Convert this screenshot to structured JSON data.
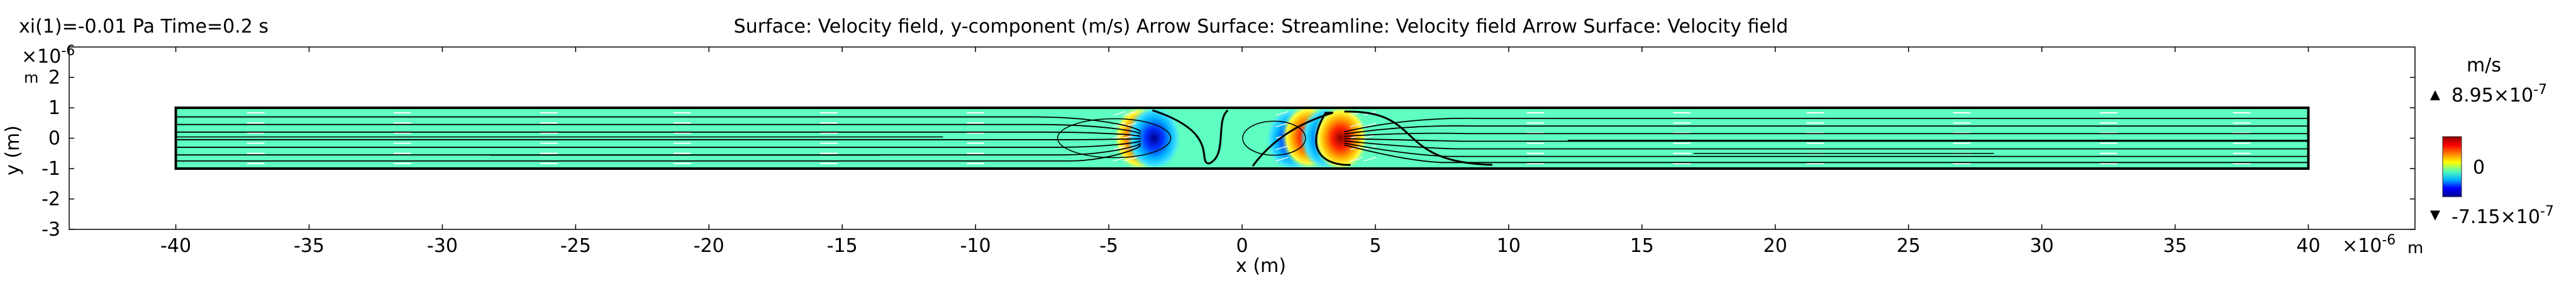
{
  "header": {
    "left_text": "xi(1)=-0.01 Pa Time=0.2 s",
    "title_text": "Surface: Velocity field, y-component (m/s)  Arrow Surface:   Streamline: Velocity field  Arrow Surface: Velocity field"
  },
  "chart_data": {
    "type": "heatmap",
    "title": "Surface: Velocity field, y-component (m/s)  Arrow Surface:   Streamline: Velocity field  Arrow Surface: Velocity field",
    "parameter_label": "xi(1)=-0.01 Pa Time=0.2 s",
    "xlabel": "x (m)",
    "ylabel": "y (m)",
    "x_scale_text": "×10",
    "x_scale_exp": "-6",
    "x_unit": "m",
    "y_scale_text": "×10",
    "y_scale_exp": "-6",
    "y_unit": "m",
    "xlim": [
      -44,
      44
    ],
    "ylim": [
      -3,
      3
    ],
    "x_ticks": [
      -40,
      -35,
      -30,
      -25,
      -20,
      -15,
      -10,
      -5,
      0,
      5,
      10,
      15,
      20,
      25,
      30,
      35,
      40
    ],
    "y_ticks": [
      -3,
      -2,
      -1,
      0,
      1,
      2
    ],
    "domain": {
      "x": [
        -40,
        40
      ],
      "y": [
        -1,
        1
      ]
    },
    "colorbar": {
      "unit": "m/s",
      "max_mantissa": "8.95",
      "max_exp": "-7",
      "min_mantissa": "-7.15",
      "min_exp": "-7",
      "zero_label": "0",
      "max_value": 8.95e-07,
      "min_value": -7.15e-07,
      "colormap": [
        "#00008f",
        "#0000ff",
        "#00b4ff",
        "#5affb0",
        "#ffff00",
        "#ff8000",
        "#ff0000",
        "#8b0000"
      ]
    },
    "background_color": "#5effc0",
    "velocity_features": [
      {
        "x": -3.8,
        "y": 0,
        "sign": 1
      },
      {
        "x": -3.3,
        "y": 0,
        "sign": -1
      },
      {
        "x": 1.9,
        "y": -0.05,
        "sign": -1
      },
      {
        "x": 2.5,
        "y": 0.05,
        "sign": 1
      },
      {
        "x": 3.2,
        "y": 0,
        "sign": -1
      },
      {
        "x": 3.7,
        "y": 0,
        "sign": 1
      }
    ],
    "arrow_columns_x": [
      -37,
      -31.5,
      -26,
      -21,
      -15.5,
      -10,
      11,
      16.5,
      21.5,
      27,
      32.5,
      37.5
    ]
  }
}
